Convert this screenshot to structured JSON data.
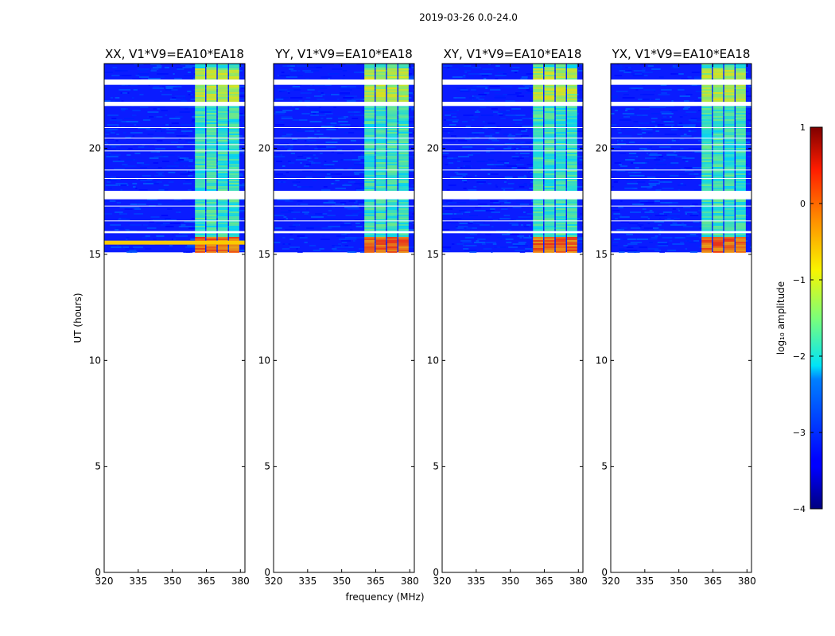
{
  "chart_data": {
    "type": "heatmap",
    "suptitle": "2019-03-26 0.0-24.0",
    "xlabel": "frequency (MHz)",
    "ylabel": "UT (hours)",
    "xlim": [
      320,
      382
    ],
    "ylim": [
      0,
      24
    ],
    "xticks": [
      320,
      335,
      350,
      365,
      380
    ],
    "yticks": [
      0,
      5,
      10,
      15,
      20
    ],
    "panels": [
      {
        "title": "XX, V1*V9=EA10*EA18",
        "polarization": "XX"
      },
      {
        "title": "YY, V1*V9=EA10*EA18",
        "polarization": "YY"
      },
      {
        "title": "XY, V1*V9=EA10*EA18",
        "polarization": "XY"
      },
      {
        "title": "YX, V1*V9=EA10*EA18",
        "polarization": "YX"
      }
    ],
    "data_start_ut": 15.1,
    "data_end_ut": 24,
    "rfi_channels_mhz": [
      [
        360,
        364.5
      ],
      [
        365,
        369.5
      ],
      [
        370,
        374.5
      ],
      [
        375,
        379.5
      ]
    ],
    "flagged_ut_gaps": [
      [
        23.0,
        23.25
      ],
      [
        22.0,
        22.2
      ],
      [
        17.6,
        18.0
      ],
      [
        16.0,
        16.1
      ]
    ],
    "colorbar": {
      "label": "log₁₀ amplitude",
      "range": [
        -4,
        1
      ],
      "ticks": [
        -4,
        -3,
        -2,
        -1,
        0,
        1
      ],
      "tick_labels": [
        "−4",
        "−3",
        "−2",
        "−1",
        "0",
        "1"
      ],
      "colormap": "jet"
    }
  }
}
